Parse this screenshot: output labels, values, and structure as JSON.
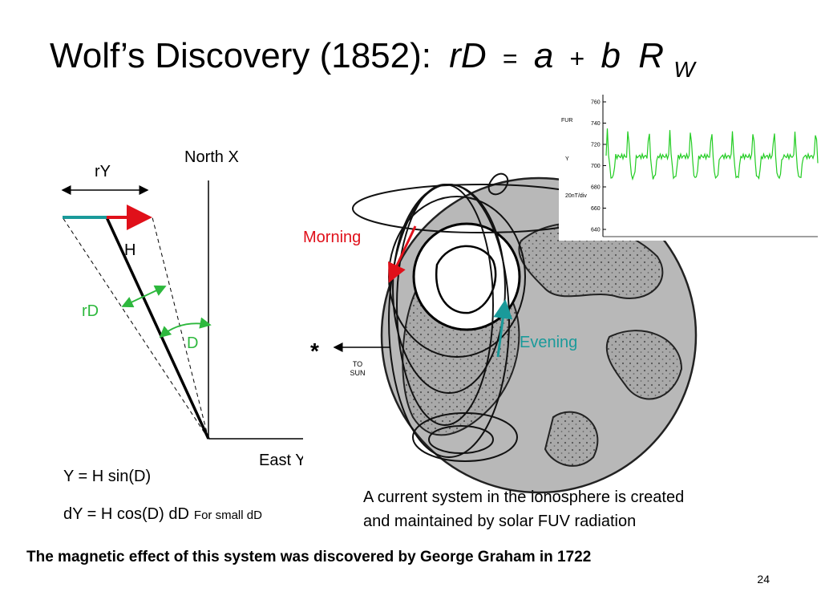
{
  "header": {
    "title": "Wolf’s Discovery (1852):",
    "formula": [
      "rD",
      "=",
      "a",
      "+",
      "b",
      "R"
    ],
    "subscript": "W"
  },
  "diagram": {
    "north": "North X",
    "ry": "rY",
    "h": "H",
    "rd": "rD",
    "d": "D",
    "east": "East Y",
    "eq1": "Y = H sin(D)",
    "eq2": "dY = H cos(D) dD",
    "eq2_note": "For small dD"
  },
  "inset": {
    "ticks": [
      760,
      740,
      720,
      700,
      680,
      660,
      640
    ],
    "component_top": "FUR",
    "component": "Y",
    "scale": "20nT/div"
  },
  "globe": {
    "morning": "Morning",
    "evening": "Evening",
    "star": "*",
    "sun_line1": "TO",
    "sun_line2": "SUN"
  },
  "caption": [
    "A current system in the ionosphere is created",
    "and maintained by solar FUV radiation"
  ],
  "footer": {
    "note": "The magnetic effect of this system was discovered by George Graham in 1722",
    "page": "24"
  }
}
